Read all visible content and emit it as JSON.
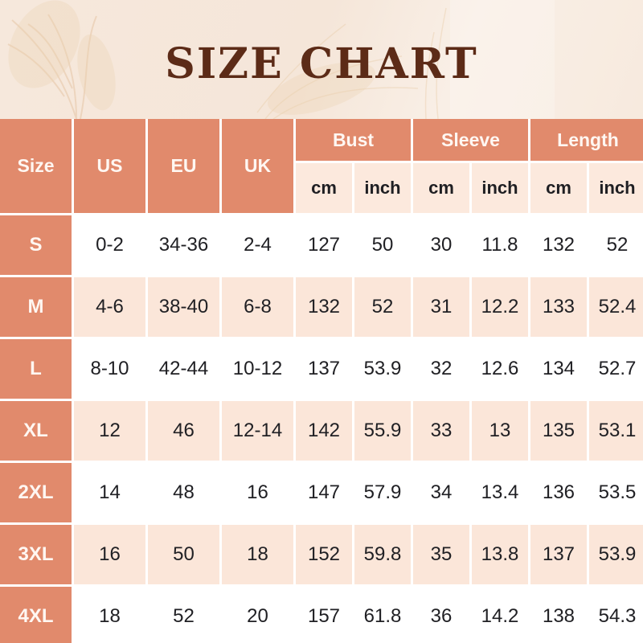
{
  "page": {
    "title": "SIZE CHART"
  },
  "colors": {
    "header_bg": "#e18a6c",
    "header_text": "#fff7f2",
    "unit_row_bg": "#fce9dd",
    "row_white_bg": "#ffffff",
    "row_peach_bg": "#fbe6d9",
    "data_text": "#202024",
    "title_text": "#5c2b17",
    "page_bg": "#f5e7db",
    "decor_grass": "#e3bf9a"
  },
  "chart_data": {
    "type": "table",
    "title": "SIZE CHART",
    "corner": "Size",
    "simple_headers": [
      "US",
      "EU",
      "UK"
    ],
    "group_headers": [
      {
        "label": "Bust",
        "sub": [
          "cm",
          "inch"
        ]
      },
      {
        "label": "Sleeve",
        "sub": [
          "cm",
          "inch"
        ]
      },
      {
        "label": "Length",
        "sub": [
          "cm",
          "inch"
        ]
      }
    ],
    "columns": [
      "Size",
      "US",
      "EU",
      "UK",
      "Bust cm",
      "Bust inch",
      "Sleeve cm",
      "Sleeve inch",
      "Length cm",
      "Length inch"
    ],
    "rows": [
      {
        "size": "S",
        "us": "0-2",
        "eu": "34-36",
        "uk": "2-4",
        "bust_cm": "127",
        "bust_inch": "50",
        "sleeve_cm": "30",
        "sleeve_inch": "11.8",
        "length_cm": "132",
        "length_inch": "52"
      },
      {
        "size": "M",
        "us": "4-6",
        "eu": "38-40",
        "uk": "6-8",
        "bust_cm": "132",
        "bust_inch": "52",
        "sleeve_cm": "31",
        "sleeve_inch": "12.2",
        "length_cm": "133",
        "length_inch": "52.4"
      },
      {
        "size": "L",
        "us": "8-10",
        "eu": "42-44",
        "uk": "10-12",
        "bust_cm": "137",
        "bust_inch": "53.9",
        "sleeve_cm": "32",
        "sleeve_inch": "12.6",
        "length_cm": "134",
        "length_inch": "52.7"
      },
      {
        "size": "XL",
        "us": "12",
        "eu": "46",
        "uk": "12-14",
        "bust_cm": "142",
        "bust_inch": "55.9",
        "sleeve_cm": "33",
        "sleeve_inch": "13",
        "length_cm": "135",
        "length_inch": "53.1"
      },
      {
        "size": "2XL",
        "us": "14",
        "eu": "48",
        "uk": "16",
        "bust_cm": "147",
        "bust_inch": "57.9",
        "sleeve_cm": "34",
        "sleeve_inch": "13.4",
        "length_cm": "136",
        "length_inch": "53.5"
      },
      {
        "size": "3XL",
        "us": "16",
        "eu": "50",
        "uk": "18",
        "bust_cm": "152",
        "bust_inch": "59.8",
        "sleeve_cm": "35",
        "sleeve_inch": "13.8",
        "length_cm": "137",
        "length_inch": "53.9"
      },
      {
        "size": "4XL",
        "us": "18",
        "eu": "52",
        "uk": "20",
        "bust_cm": "157",
        "bust_inch": "61.8",
        "sleeve_cm": "36",
        "sleeve_inch": "14.2",
        "length_cm": "138",
        "length_inch": "54.3"
      }
    ]
  }
}
